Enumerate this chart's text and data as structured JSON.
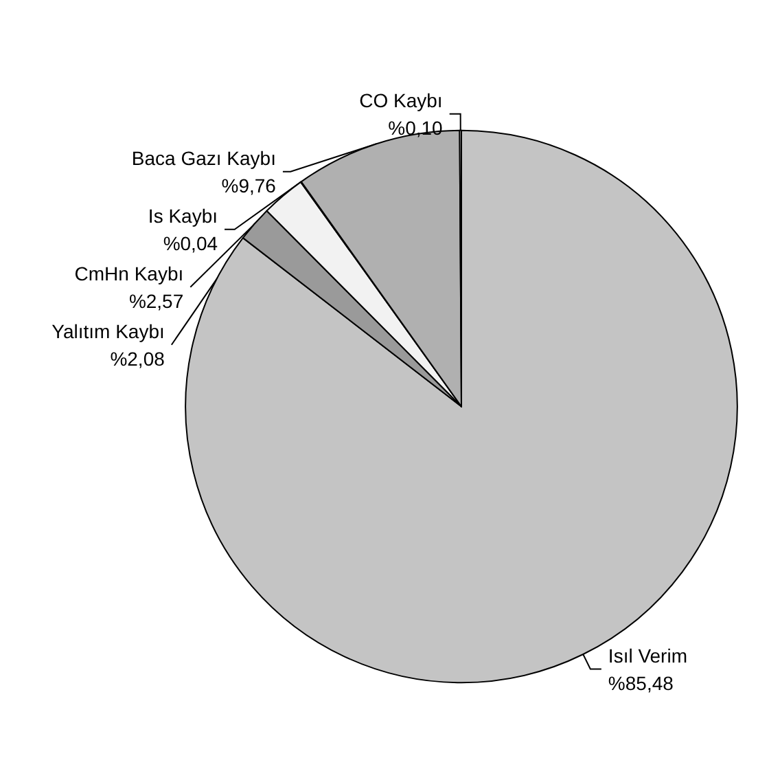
{
  "chart_data": {
    "type": "pie",
    "categories": [
      "Isıl Verim",
      "Yalıtım Kaybı",
      "CmHn Kaybı",
      "Is Kaybı",
      "Baca Gazı Kaybı",
      "CO Kaybı"
    ],
    "values": [
      85.48,
      2.08,
      2.57,
      0.04,
      9.76,
      0.1
    ],
    "value_labels": [
      "%85,48",
      "%2,08",
      "%2,57",
      "%0,04",
      "%9,76",
      "%0,10"
    ],
    "colors": [
      "#c4c4c4",
      "#9a9a9a",
      "#f2f2f2",
      "#6e6e6e",
      "#b0b0b0",
      "#ffffff"
    ]
  }
}
